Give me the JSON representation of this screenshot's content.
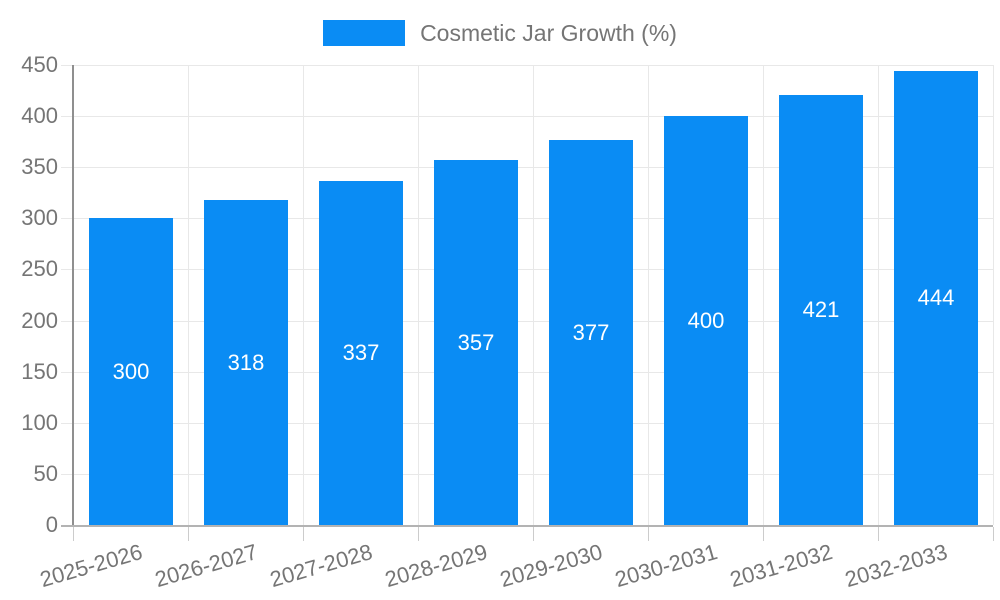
{
  "legend": {
    "items": [
      {
        "label": "Cosmetic Jar Growth (%)",
        "color": "#0a8cf4"
      }
    ],
    "position": "top-center"
  },
  "chart_data": {
    "type": "bar",
    "title": "",
    "categories": [
      "2025-2026",
      "2026-2027",
      "2027-2028",
      "2028-2029",
      "2029-2030",
      "2030-2031",
      "2031-2032",
      "2032-2033"
    ],
    "series": [
      {
        "name": "Cosmetic Jar Growth (%)",
        "values": [
          300,
          318,
          337,
          357,
          377,
          400,
          421,
          444
        ]
      }
    ],
    "bar_value_labels": [
      "300",
      "318",
      "337",
      "357",
      "377",
      "400",
      "421",
      "444"
    ],
    "xlabel": "",
    "ylabel": "",
    "ylim": [
      0,
      450
    ],
    "yticks": [
      0,
      50,
      100,
      150,
      200,
      250,
      300,
      350,
      400,
      450
    ],
    "grid": true,
    "legend_position": "top-center",
    "xtick_rotation_deg": -16
  },
  "colors": {
    "bar": "#0a8cf4",
    "grid": "#e8e8e8",
    "tick": "#cccccc",
    "axis_y": "#8f8f8f",
    "axis_x": "#b3b3b3",
    "tick_text": "#757575",
    "value_text": "#ffffff",
    "background": "#ffffff"
  }
}
